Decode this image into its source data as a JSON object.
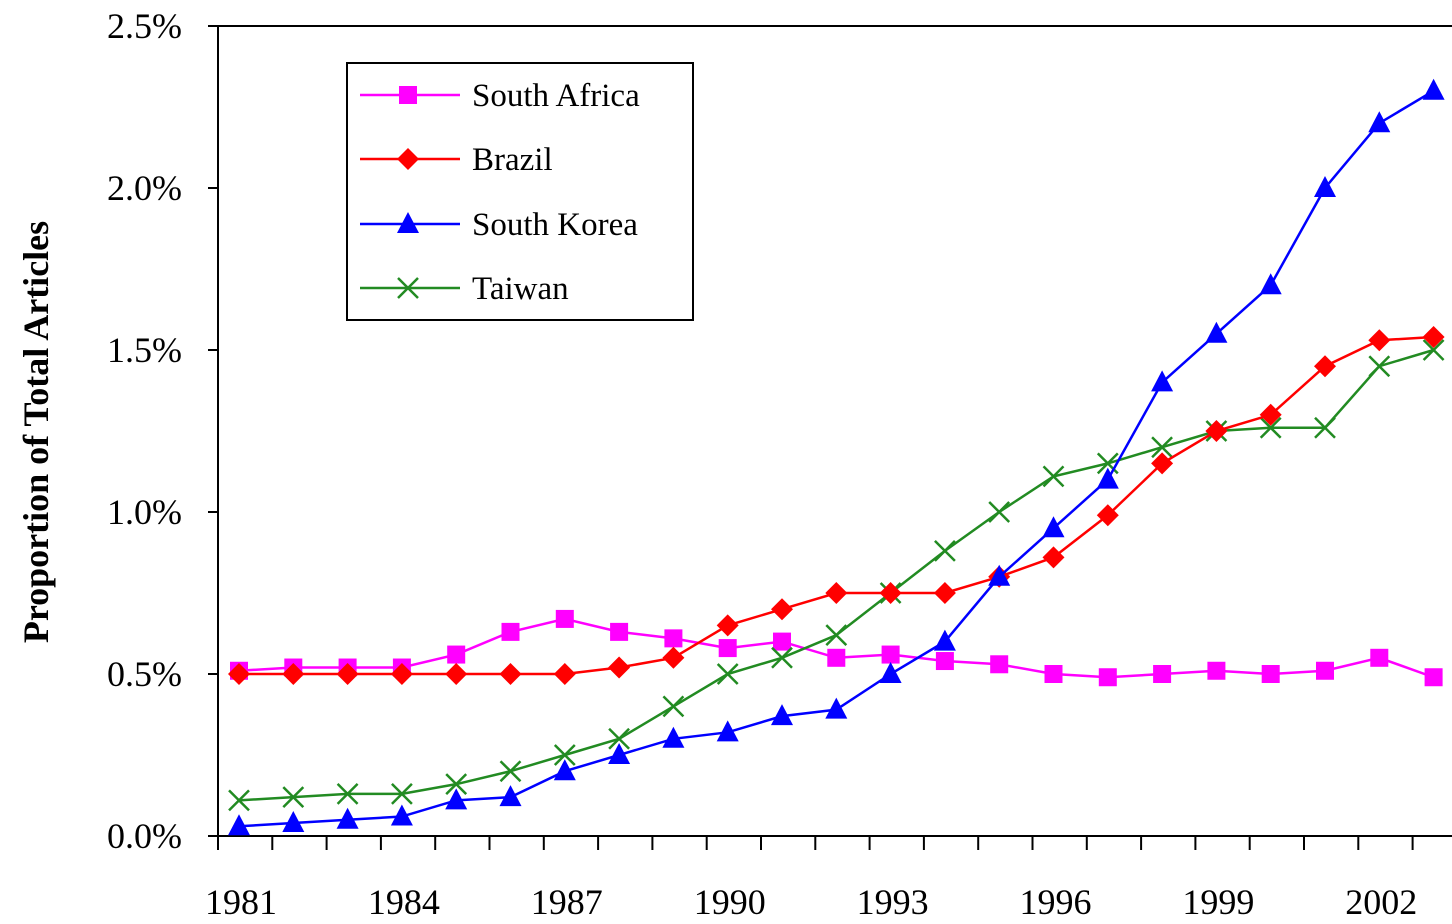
{
  "chart_data": {
    "type": "line",
    "title": "",
    "xlabel": "",
    "ylabel": "Proportion of Total Articles",
    "x": [
      1981,
      1982,
      1983,
      1984,
      1985,
      1986,
      1987,
      1988,
      1989,
      1990,
      1991,
      1992,
      1993,
      1994,
      1995,
      1996,
      1997,
      1998,
      1999,
      2000,
      2001,
      2002,
      2003
    ],
    "x_ticks": [
      1981,
      1984,
      1987,
      1990,
      1993,
      1996,
      1999,
      2002
    ],
    "x_tick_labels": [
      "1981",
      "1984",
      "1987",
      "1990",
      "1993",
      "1996",
      "1999",
      "2002"
    ],
    "ylim": [
      0,
      2.5
    ],
    "y_ticks": [
      0,
      0.5,
      1.0,
      1.5,
      2.0,
      2.5
    ],
    "y_tick_labels": [
      "0.0%",
      "0.5%",
      "1.0%",
      "1.5%",
      "2.0%",
      "2.5%"
    ],
    "grid": false,
    "legend_position": "top-left",
    "series": [
      {
        "name": "South Africa",
        "color": "#ff00ff",
        "marker": "square",
        "values": [
          0.51,
          0.52,
          0.52,
          0.52,
          0.56,
          0.63,
          0.67,
          0.63,
          0.61,
          0.58,
          0.6,
          0.55,
          0.56,
          0.54,
          0.53,
          0.5,
          0.49,
          0.5,
          0.51,
          0.5,
          0.51,
          0.55,
          0.49
        ]
      },
      {
        "name": "Brazil",
        "color": "#ff0000",
        "marker": "diamond",
        "values": [
          0.5,
          0.5,
          0.5,
          0.5,
          0.5,
          0.5,
          0.5,
          0.52,
          0.55,
          0.65,
          0.7,
          0.75,
          0.75,
          0.75,
          0.8,
          0.86,
          0.99,
          1.15,
          1.25,
          1.3,
          1.45,
          1.53,
          1.54
        ]
      },
      {
        "name": "South Korea",
        "color": "#0000ff",
        "marker": "triangle",
        "values": [
          0.03,
          0.04,
          0.05,
          0.06,
          0.11,
          0.12,
          0.2,
          0.25,
          0.3,
          0.32,
          0.37,
          0.39,
          0.5,
          0.6,
          0.8,
          0.95,
          1.1,
          1.4,
          1.55,
          1.7,
          2.0,
          2.2,
          2.3
        ]
      },
      {
        "name": "Taiwan",
        "color": "#228b22",
        "marker": "x",
        "values": [
          0.11,
          0.12,
          0.13,
          0.13,
          0.16,
          0.2,
          0.25,
          0.3,
          0.4,
          0.5,
          0.55,
          0.62,
          0.75,
          0.88,
          1.0,
          1.11,
          1.15,
          1.2,
          1.25,
          1.26,
          1.26,
          1.45,
          1.5
        ]
      }
    ]
  }
}
